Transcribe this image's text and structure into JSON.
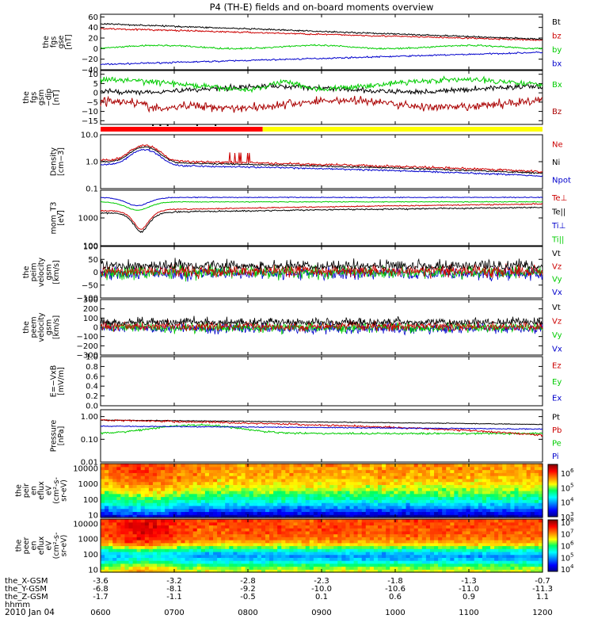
{
  "title": "P4 (TH-E) fields and on-board moments overview",
  "date_label": "2010 Jan 04",
  "chart_data": {
    "type": "line",
    "time_axis": {
      "ticks": [
        "0600",
        "0700",
        "0800",
        "0900",
        "1000",
        "1100",
        "1200"
      ],
      "start_hour": 6,
      "end_hour": 12,
      "rows": [
        {
          "label": "the_X-GSM",
          "values": [
            "-3.6",
            "-3.2",
            "-2.8",
            "-2.3",
            "-1.8",
            "-1.3",
            "-0.7"
          ]
        },
        {
          "label": "the_Y-GSM",
          "values": [
            "-6.8",
            "-8.1",
            "-9.2",
            "-10.0",
            "-10.6",
            "-11.0",
            "-11.3"
          ]
        },
        {
          "label": "the_Z-GSM",
          "values": [
            "-1.7",
            "-1.1",
            "-0.5",
            "0.1",
            "0.6",
            "0.9",
            "1.1"
          ]
        },
        {
          "label": "hhmm",
          "values": []
        }
      ]
    },
    "panels": [
      {
        "id": "fgs_gse",
        "ylabel": [
          "the",
          "fgs",
          "gse",
          "[nT]"
        ],
        "ticks": [
          "60",
          "40",
          "20",
          "0",
          "−20",
          "−40"
        ],
        "tick_values": [
          60,
          40,
          20,
          0,
          -20,
          -40
        ],
        "ylim": [
          -40,
          65
        ],
        "scale": "linear",
        "legend": [
          {
            "name": "Bt",
            "color": "#000000"
          },
          {
            "name": "bz",
            "color": "#cc0000"
          },
          {
            "name": "by",
            "color": "#00cc00"
          },
          {
            "name": "bx",
            "color": "#0000cc"
          }
        ]
      },
      {
        "id": "fgs_gsm_dip",
        "ylabel": [
          "the",
          "fgs",
          "gsm",
          "−dip",
          "[nT]"
        ],
        "ticks": [
          "10",
          "5",
          "0",
          "−5",
          "−10",
          "−15"
        ],
        "tick_values": [
          10,
          5,
          0,
          -5,
          -10,
          -15
        ],
        "ylim": [
          -17,
          12
        ],
        "scale": "linear",
        "legend": [
          {
            "name": "Bx",
            "color": "#00cc00"
          },
          {
            "name": "Bz",
            "color": "#aa0000"
          }
        ]
      },
      {
        "id": "mode_bar",
        "segments": [
          {
            "start": 6.0,
            "end": 8.2,
            "color": "#ff0000"
          },
          {
            "start": 8.2,
            "end": 12.0,
            "color": "#ffff00"
          }
        ]
      },
      {
        "id": "density",
        "ylabel": [
          "Density",
          "[cm−3]"
        ],
        "ticks": [
          "10.0",
          "1.0",
          "0.1"
        ],
        "tick_values": [
          10,
          1,
          0.1
        ],
        "ylim": [
          0.1,
          10
        ],
        "scale": "log",
        "legend": [
          {
            "name": "Ne",
            "color": "#cc0000"
          },
          {
            "name": "Ni",
            "color": "#000000"
          },
          {
            "name": "Npot",
            "color": "#0000cc"
          }
        ]
      },
      {
        "id": "temperature",
        "ylabel": [
          "mom_T3",
          "[eV]"
        ],
        "ticks": [
          "1000",
          "100"
        ],
        "tick_values": [
          1000,
          100
        ],
        "ylim": [
          100,
          10000
        ],
        "scale": "log",
        "legend": [
          {
            "name": "Te⊥",
            "color": "#cc0000"
          },
          {
            "name": "Te||",
            "color": "#000000"
          },
          {
            "name": "Ti⊥",
            "color": "#0000cc"
          },
          {
            "name": "Ti||",
            "color": "#00cc00"
          }
        ]
      },
      {
        "id": "velocity_eesa",
        "ylabel": [
          "the",
          "peim",
          "velocity",
          "gsm",
          "[km/s]"
        ],
        "ticks": [
          "100",
          "50",
          "0",
          "−50",
          "−100"
        ],
        "tick_values": [
          100,
          50,
          0,
          -50,
          -100
        ],
        "ylim": [
          -100,
          100
        ],
        "scale": "linear",
        "legend": [
          {
            "name": "Vt",
            "color": "#000000"
          },
          {
            "name": "Vz",
            "color": "#cc0000"
          },
          {
            "name": "Vy",
            "color": "#00cc00"
          },
          {
            "name": "Vx",
            "color": "#0000cc"
          }
        ]
      },
      {
        "id": "velocity_esa",
        "ylabel": [
          "the",
          "peem",
          "velocity",
          "gsm",
          "[km/s]"
        ],
        "ticks": [
          "300",
          "200",
          "100",
          "0",
          "−100",
          "−200",
          "−300"
        ],
        "tick_values": [
          300,
          200,
          100,
          0,
          -100,
          -200,
          -300
        ],
        "ylim": [
          -300,
          300
        ],
        "scale": "linear",
        "legend": [
          {
            "name": "Vt",
            "color": "#000000"
          },
          {
            "name": "Vz",
            "color": "#cc0000"
          },
          {
            "name": "Vy",
            "color": "#00cc00"
          },
          {
            "name": "Vx",
            "color": "#0000cc"
          }
        ]
      },
      {
        "id": "efield",
        "ylabel": [
          "E=−VxB",
          "[mV/m]"
        ],
        "ticks": [
          "1.0",
          "0.8",
          "0.6",
          "0.4",
          "0.2",
          "0.0"
        ],
        "tick_values": [
          1.0,
          0.8,
          0.6,
          0.4,
          0.2,
          0.0
        ],
        "ylim": [
          0,
          1
        ],
        "scale": "linear",
        "legend": [
          {
            "name": "Ez",
            "color": "#cc0000"
          },
          {
            "name": "Ey",
            "color": "#00cc00"
          },
          {
            "name": "Ex",
            "color": "#0000cc"
          }
        ]
      },
      {
        "id": "pressure",
        "ylabel": [
          "Pressure",
          "[nPa]"
        ],
        "ticks": [
          "1.00",
          "0.10",
          "0.01"
        ],
        "tick_values": [
          1,
          0.1,
          0.01
        ],
        "ylim": [
          0.01,
          2
        ],
        "scale": "log",
        "legend": [
          {
            "name": "Pt",
            "color": "#000000"
          },
          {
            "name": "Pb",
            "color": "#cc0000"
          },
          {
            "name": "Pe",
            "color": "#00cc00"
          },
          {
            "name": "Pi",
            "color": "#0000cc"
          }
        ]
      },
      {
        "id": "ion_spectrogram",
        "type": "heatmap",
        "ylabel": [
          "the",
          "peir",
          "en",
          "eflux",
          "eV",
          "(cm²-s-",
          "sr-eV)"
        ],
        "ticks": [
          "10000",
          "1000",
          "100",
          "10"
        ],
        "tick_values": [
          10000,
          1000,
          100,
          10
        ],
        "ylim": [
          7,
          20000
        ],
        "scale": "log",
        "colorbar": {
          "labels": [
            "10",
            "10",
            "10",
            "10"
          ],
          "exps": [
            "6",
            "5",
            "4",
            "3"
          ],
          "range_exp": [
            3,
            6.6
          ]
        }
      },
      {
        "id": "electron_spectrogram",
        "type": "heatmap",
        "ylabel": [
          "the",
          "peer",
          "en",
          "eflux",
          "eV",
          "(cm²-s-",
          "sr-eV)"
        ],
        "ticks": [
          "10000",
          "1000",
          "100",
          "10"
        ],
        "tick_values": [
          10000,
          1000,
          100,
          10
        ],
        "ylim": [
          7,
          20000
        ],
        "scale": "log",
        "colorbar": {
          "labels": [
            "10",
            "10",
            "10",
            "10",
            "10"
          ],
          "exps": [
            "8",
            "7",
            "6",
            "5",
            "4"
          ],
          "range_exp": [
            3.8,
            8.2
          ]
        }
      }
    ]
  }
}
